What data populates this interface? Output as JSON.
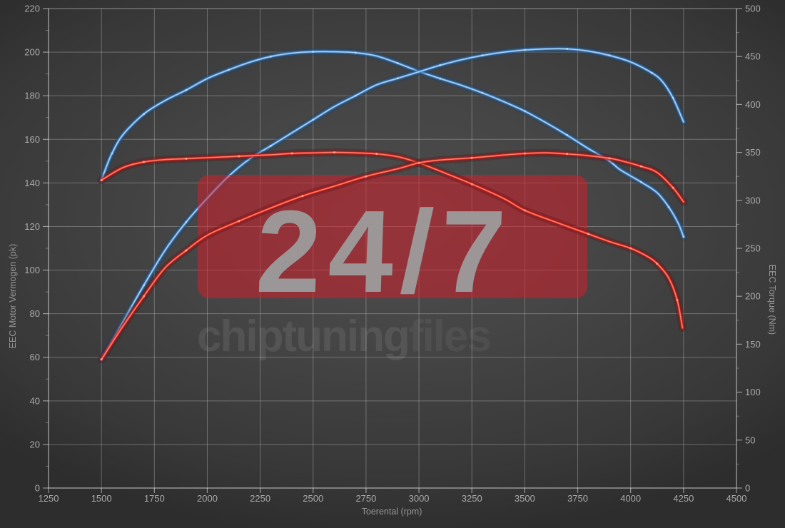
{
  "watermark": {
    "badge": "24/7",
    "brand_bold": "chiptuning",
    "brand_light": "files",
    "badge_bg": "#d61c28",
    "badge_text_color": "#9c9c9c"
  },
  "colors": {
    "background": "#434343",
    "grid": "#8a8a8a",
    "tick_text": "#aaaaaa",
    "axis_title_text": "#969696",
    "blue_curve": "#4f94d8",
    "red_curve": "#e32222"
  },
  "chart_data": {
    "type": "line",
    "xlabel": "Toerental (rpm)",
    "x_range": [
      1250,
      4500
    ],
    "x_ticks": [
      1250,
      1500,
      1750,
      2000,
      2250,
      2500,
      2750,
      3000,
      3250,
      3500,
      3750,
      4000,
      4250,
      4500
    ],
    "y_left": {
      "label": "EEC Motor Vermogen (pk)",
      "range": [
        0,
        220
      ],
      "ticks": [
        0,
        20,
        40,
        60,
        80,
        100,
        120,
        140,
        160,
        180,
        200,
        220
      ]
    },
    "y_right": {
      "label": "EEC Torque (Nm)",
      "range": [
        0,
        500
      ],
      "ticks": [
        0,
        50,
        100,
        150,
        200,
        250,
        300,
        350,
        400,
        450,
        500
      ]
    },
    "grid": true,
    "legend": false,
    "series": [
      {
        "id": "blue-torque",
        "color": "#4f94d8",
        "axis": "right",
        "unit": "Nm",
        "layer": "below-watermark",
        "points": [
          [
            1500,
            321
          ],
          [
            1525,
            336
          ],
          [
            1550,
            349
          ],
          [
            1600,
            368
          ],
          [
            1700,
            390
          ],
          [
            1800,
            404
          ],
          [
            1900,
            415
          ],
          [
            2000,
            427
          ],
          [
            2100,
            436
          ],
          [
            2200,
            444
          ],
          [
            2300,
            450
          ],
          [
            2400,
            453.5
          ],
          [
            2500,
            455
          ],
          [
            2600,
            455
          ],
          [
            2700,
            454
          ],
          [
            2800,
            450.5
          ],
          [
            2900,
            443
          ],
          [
            3000,
            434.5
          ],
          [
            3100,
            427
          ],
          [
            3200,
            420
          ],
          [
            3300,
            412
          ],
          [
            3400,
            403
          ],
          [
            3500,
            393
          ],
          [
            3600,
            381
          ],
          [
            3700,
            368
          ],
          [
            3800,
            354
          ],
          [
            3900,
            341
          ],
          [
            3950,
            332
          ],
          [
            4050,
            319
          ],
          [
            4125,
            308
          ],
          [
            4180,
            293
          ],
          [
            4225,
            276
          ],
          [
            4250,
            262
          ]
        ]
      },
      {
        "id": "blue-power",
        "color": "#4f94d8",
        "axis": "left",
        "unit": "pk",
        "layer": "below-watermark",
        "points": [
          [
            1500,
            59
          ],
          [
            1600,
            76
          ],
          [
            1700,
            93
          ],
          [
            1800,
            109
          ],
          [
            1900,
            122
          ],
          [
            2000,
            133
          ],
          [
            2100,
            143
          ],
          [
            2200,
            151
          ],
          [
            2300,
            157
          ],
          [
            2400,
            163
          ],
          [
            2500,
            169
          ],
          [
            2600,
            175
          ],
          [
            2700,
            180
          ],
          [
            2800,
            185
          ],
          [
            2900,
            188
          ],
          [
            3000,
            191
          ],
          [
            3100,
            194
          ],
          [
            3200,
            196.5
          ],
          [
            3300,
            198.5
          ],
          [
            3400,
            200
          ],
          [
            3500,
            201
          ],
          [
            3600,
            201.5
          ],
          [
            3700,
            201.5
          ],
          [
            3800,
            200.5
          ],
          [
            3900,
            198.5
          ],
          [
            4000,
            195.5
          ],
          [
            4100,
            190.5
          ],
          [
            4150,
            186.5
          ],
          [
            4200,
            179
          ],
          [
            4250,
            168
          ]
        ]
      },
      {
        "id": "red-torque",
        "color": "#e32222",
        "axis": "right",
        "unit": "Nm",
        "layer": "above-watermark",
        "points": [
          [
            1500,
            321
          ],
          [
            1600,
            334
          ],
          [
            1700,
            340
          ],
          [
            1800,
            342.5
          ],
          [
            1900,
            343.5
          ],
          [
            2000,
            344.5
          ],
          [
            2150,
            346
          ],
          [
            2300,
            347.5
          ],
          [
            2400,
            349
          ],
          [
            2500,
            349.5
          ],
          [
            2600,
            350
          ],
          [
            2700,
            349.5
          ],
          [
            2800,
            348.5
          ],
          [
            2900,
            345.5
          ],
          [
            3000,
            339
          ],
          [
            3100,
            330.5
          ],
          [
            3250,
            317
          ],
          [
            3400,
            302
          ],
          [
            3500,
            289.5
          ],
          [
            3650,
            277
          ],
          [
            3800,
            265
          ],
          [
            3900,
            257
          ],
          [
            4000,
            250
          ],
          [
            4075,
            242
          ],
          [
            4125,
            234
          ],
          [
            4180,
            219
          ],
          [
            4220,
            196
          ],
          [
            4245,
            167
          ]
        ]
      },
      {
        "id": "red-power",
        "color": "#e32222",
        "axis": "left",
        "unit": "pk",
        "layer": "above-watermark",
        "points": [
          [
            1500,
            59
          ],
          [
            1600,
            74
          ],
          [
            1700,
            88
          ],
          [
            1800,
            101
          ],
          [
            1900,
            109
          ],
          [
            2000,
            116
          ],
          [
            2150,
            122.5
          ],
          [
            2300,
            128.5
          ],
          [
            2450,
            134
          ],
          [
            2600,
            138.5
          ],
          [
            2750,
            143
          ],
          [
            2900,
            146.5
          ],
          [
            3000,
            149.2
          ],
          [
            3100,
            150.5
          ],
          [
            3250,
            151.5
          ],
          [
            3400,
            152.8
          ],
          [
            3500,
            153.5
          ],
          [
            3600,
            153.8
          ],
          [
            3700,
            153.3
          ],
          [
            3800,
            152.5
          ],
          [
            3900,
            151.3
          ],
          [
            3950,
            150.3
          ],
          [
            4050,
            147.6
          ],
          [
            4125,
            144.8
          ],
          [
            4200,
            137.8
          ],
          [
            4250,
            131.3
          ]
        ]
      }
    ]
  }
}
